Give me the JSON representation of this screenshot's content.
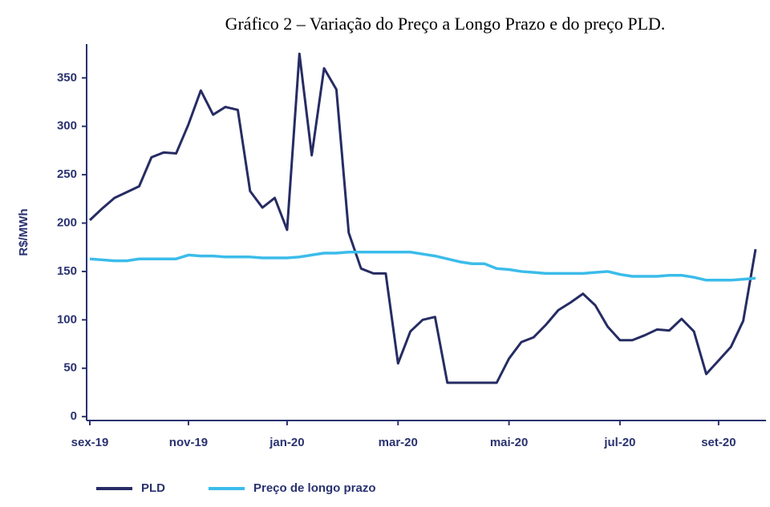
{
  "chart_data": {
    "type": "line",
    "title": "Gráfico 2 – Variação do Preço a Longo Prazo e do preço PLD.",
    "y_label": "R$/MWh",
    "categories": [
      "sex-19",
      null,
      null,
      null,
      null,
      null,
      null,
      null,
      "nov-19",
      null,
      null,
      null,
      null,
      null,
      null,
      null,
      "jan-20",
      null,
      null,
      null,
      null,
      null,
      null,
      null,
      null,
      "mar-20",
      null,
      null,
      null,
      null,
      null,
      null,
      null,
      null,
      "mai-20",
      null,
      null,
      null,
      null,
      null,
      null,
      null,
      null,
      "jul-20",
      null,
      null,
      null,
      null,
      null,
      null,
      null,
      "set-20",
      null,
      null,
      null
    ],
    "series": [
      {
        "name": "PLD",
        "color": "#262c63",
        "values": [
          203,
          215,
          226,
          232,
          238,
          268,
          273,
          272,
          302,
          337,
          312,
          320,
          317,
          233,
          216,
          226,
          193,
          375,
          270,
          360,
          338,
          190,
          153,
          148,
          148,
          55,
          88,
          100,
          103,
          35,
          35,
          35,
          35,
          35,
          60,
          77,
          82,
          95,
          110,
          118,
          127,
          115,
          93,
          79,
          79,
          84,
          90,
          89,
          101,
          88,
          44,
          58,
          72,
          99,
          173
        ]
      },
      {
        "name": "Preço de longo prazo",
        "color": "#3bbcea",
        "values": [
          163,
          162,
          161,
          161,
          163,
          163,
          163,
          163,
          167,
          166,
          166,
          165,
          165,
          165,
          164,
          164,
          164,
          165,
          167,
          169,
          169,
          170,
          170,
          170,
          170,
          170,
          170,
          168,
          166,
          163,
          160,
          158,
          158,
          153,
          152,
          150,
          149,
          148,
          148,
          148,
          148,
          149,
          150,
          147,
          145,
          145,
          145,
          146,
          146,
          144,
          141,
          141,
          141,
          142,
          143
        ]
      }
    ],
    "ylim": [
      -4,
      385
    ],
    "yticks": [
      0,
      50,
      100,
      150,
      200,
      250,
      300,
      350
    ]
  }
}
